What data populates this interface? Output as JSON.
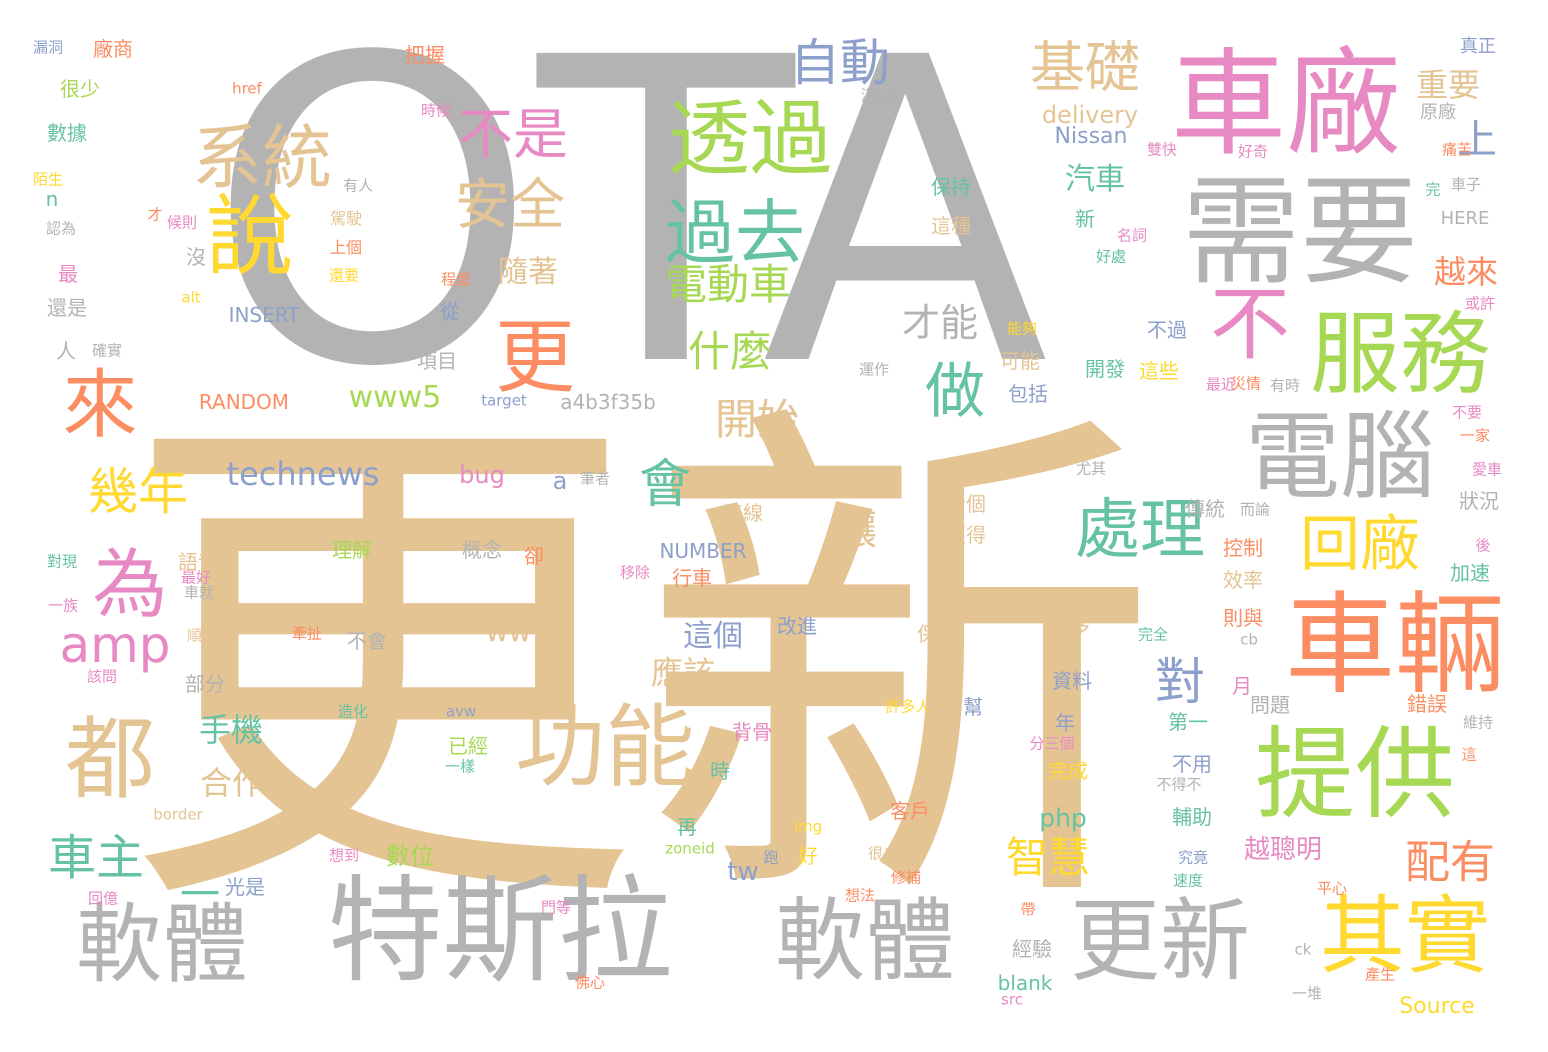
{
  "palette": {
    "gray": "#b3b3b3",
    "tan": "#e5c494",
    "orange": "#fc8d62",
    "pink": "#e78ac3",
    "green": "#a6d854",
    "teal": "#66c2a5",
    "blue": "#8da0cb",
    "yellow": "#ffd92f"
  },
  "words": [
    {
      "text": "OTA",
      "color": "gray"
    },
    {
      "text": "更新",
      "color": "tan"
    },
    {
      "text": "車廠",
      "color": "pink"
    },
    {
      "text": "需要",
      "color": "gray"
    },
    {
      "text": "特斯拉",
      "color": "gray"
    },
    {
      "text": "軟體",
      "color": "gray"
    },
    {
      "text": "軟體",
      "color": "gray"
    },
    {
      "text": "更新",
      "color": "gray"
    },
    {
      "text": "車輛",
      "color": "orange"
    },
    {
      "text": "提供",
      "color": "green"
    },
    {
      "text": "電腦",
      "color": "gray"
    },
    {
      "text": "服務",
      "color": "green"
    },
    {
      "text": "不",
      "color": "pink"
    },
    {
      "text": "其實",
      "color": "yellow"
    },
    {
      "text": "都",
      "color": "tan"
    },
    {
      "text": "功能",
      "color": "tan"
    },
    {
      "text": "透過",
      "color": "green"
    },
    {
      "text": "過去",
      "color": "teal"
    },
    {
      "text": "更",
      "color": "orange"
    },
    {
      "text": "說",
      "color": "yellow"
    },
    {
      "text": "系統",
      "color": "tan"
    },
    {
      "text": "來",
      "color": "orange"
    },
    {
      "text": "為",
      "color": "pink"
    },
    {
      "text": "處理",
      "color": "teal"
    },
    {
      "text": "回廠",
      "color": "yellow"
    },
    {
      "text": "基礎",
      "color": "tan"
    },
    {
      "text": "自動",
      "color": "blue"
    },
    {
      "text": "不是",
      "color": "pink"
    },
    {
      "text": "安全",
      "color": "tan"
    },
    {
      "text": "做",
      "color": "teal"
    },
    {
      "text": "會",
      "color": "teal"
    },
    {
      "text": "幾年",
      "color": "yellow"
    },
    {
      "text": "amp",
      "color": "pink"
    },
    {
      "text": "車主",
      "color": "teal"
    },
    {
      "text": "一",
      "color": "teal"
    },
    {
      "text": "配有",
      "color": "orange"
    },
    {
      "text": "智慧",
      "color": "yellow"
    },
    {
      "text": "電動車",
      "color": "green"
    },
    {
      "text": "什麼",
      "color": "green"
    },
    {
      "text": "開始",
      "color": "tan"
    },
    {
      "text": "才能",
      "color": "gray"
    },
    {
      "text": "technews",
      "color": "blue"
    },
    {
      "text": "www5",
      "color": "green"
    },
    {
      "text": "對",
      "color": "blue"
    },
    {
      "text": "讓",
      "color": "tan"
    },
    {
      "text": "上",
      "color": "blue"
    },
    {
      "text": "重要",
      "color": "tan"
    },
    {
      "text": "越來",
      "color": "orange"
    },
    {
      "text": "汽車",
      "color": "teal"
    },
    {
      "text": "隨著",
      "color": "tan"
    },
    {
      "text": "delivery",
      "color": "tan"
    },
    {
      "text": "Nissan",
      "color": "blue"
    },
    {
      "text": "手機",
      "color": "teal"
    },
    {
      "text": "合作",
      "color": "tan"
    },
    {
      "text": "應該",
      "color": "tan"
    },
    {
      "text": "這個",
      "color": "blue"
    },
    {
      "text": "www",
      "color": "tan"
    },
    {
      "text": "越聰明",
      "color": "pink"
    },
    {
      "text": "tw",
      "color": "blue"
    },
    {
      "text": "php",
      "color": "teal"
    },
    {
      "text": "a4b3f35b",
      "color": "gray"
    },
    {
      "text": "RANDOM",
      "color": "orange"
    },
    {
      "text": "INSERT",
      "color": "blue"
    },
    {
      "text": "NUMBER",
      "color": "blue"
    },
    {
      "text": "Source",
      "color": "yellow"
    },
    {
      "text": "bug",
      "color": "pink"
    },
    {
      "text": "a",
      "color": "blue"
    },
    {
      "text": "數位",
      "color": "green"
    },
    {
      "text": "語音",
      "color": "tan"
    },
    {
      "text": "控制",
      "color": "orange"
    },
    {
      "text": "效率",
      "color": "tan"
    },
    {
      "text": "傳統",
      "color": "gray"
    },
    {
      "text": "狀況",
      "color": "gray"
    },
    {
      "text": "加速",
      "color": "teal"
    },
    {
      "text": "錯誤",
      "color": "orange"
    },
    {
      "text": "問題",
      "color": "gray"
    },
    {
      "text": "資料",
      "color": "blue"
    },
    {
      "text": "許多",
      "color": "tan"
    },
    {
      "text": "改進",
      "color": "blue"
    },
    {
      "text": "保養",
      "color": "tan"
    },
    {
      "text": "客戶",
      "color": "orange"
    },
    {
      "text": "完成",
      "color": "yellow"
    },
    {
      "text": "已經",
      "color": "green"
    },
    {
      "text": "行車",
      "color": "orange"
    },
    {
      "text": "理解",
      "color": "green"
    },
    {
      "text": "概念",
      "color": "gray"
    },
    {
      "text": "部分",
      "color": "gray"
    },
    {
      "text": "背骨",
      "color": "pink"
    },
    {
      "text": "獲得",
      "color": "tan"
    },
    {
      "text": "連線",
      "color": "tan"
    },
    {
      "text": "看個",
      "color": "tan"
    },
    {
      "text": "包括",
      "color": "blue"
    },
    {
      "text": "可能",
      "color": "tan"
    },
    {
      "text": "項目",
      "color": "gray"
    },
    {
      "text": "開發",
      "color": "teal"
    },
    {
      "text": "這些",
      "color": "yellow"
    },
    {
      "text": "不過",
      "color": "blue"
    },
    {
      "text": "保持",
      "color": "teal"
    },
    {
      "text": "這種",
      "color": "tan"
    },
    {
      "text": "駕駛",
      "color": "tan"
    },
    {
      "text": "上個",
      "color": "orange"
    },
    {
      "text": "很少",
      "color": "green"
    },
    {
      "text": "數據",
      "color": "teal"
    },
    {
      "text": "廠商",
      "color": "orange"
    },
    {
      "text": "把握",
      "color": "orange"
    },
    {
      "text": "href",
      "color": "orange"
    },
    {
      "text": "時候",
      "color": "pink"
    },
    {
      "text": "漏洞",
      "color": "blue"
    },
    {
      "text": "真正",
      "color": "blue"
    },
    {
      "text": "原廠",
      "color": "gray"
    },
    {
      "text": "HERE",
      "color": "gray"
    },
    {
      "text": "第一",
      "color": "teal"
    },
    {
      "text": "不用",
      "color": "blue"
    },
    {
      "text": "輔助",
      "color": "teal"
    },
    {
      "text": "維持",
      "color": "gray"
    },
    {
      "text": "再",
      "color": "teal"
    },
    {
      "text": "好",
      "color": "yellow"
    },
    {
      "text": "時",
      "color": "teal"
    },
    {
      "text": "年",
      "color": "blue"
    },
    {
      "text": "月",
      "color": "pink"
    },
    {
      "text": "新",
      "color": "teal"
    },
    {
      "text": "從",
      "color": "blue"
    },
    {
      "text": "沒",
      "color": "gray"
    },
    {
      "text": "最",
      "color": "pink"
    },
    {
      "text": "還是",
      "color": "gray"
    },
    {
      "text": "人",
      "color": "gray"
    },
    {
      "text": "確實",
      "color": "gray"
    },
    {
      "text": "認為",
      "color": "gray"
    },
    {
      "text": "陌生",
      "color": "yellow"
    },
    {
      "text": "n",
      "color": "teal"
    },
    {
      "text": "才",
      "color": "orange"
    },
    {
      "text": "候則",
      "color": "pink"
    },
    {
      "text": "有人",
      "color": "gray"
    },
    {
      "text": "還要",
      "color": "yellow"
    },
    {
      "text": "程度",
      "color": "orange"
    },
    {
      "text": "alt",
      "color": "yellow"
    },
    {
      "text": "滿街",
      "color": "gray"
    },
    {
      "text": "能夠",
      "color": "yellow"
    },
    {
      "text": "運作",
      "color": "gray"
    },
    {
      "text": "最近",
      "color": "pink"
    },
    {
      "text": "災情",
      "color": "orange"
    },
    {
      "text": "有時",
      "color": "gray"
    },
    {
      "text": "不要",
      "color": "pink"
    },
    {
      "text": "一家",
      "color": "orange"
    },
    {
      "text": "愛車",
      "color": "pink"
    },
    {
      "text": "而論",
      "color": "gray"
    },
    {
      "text": "尤其",
      "color": "gray"
    },
    {
      "text": "後",
      "color": "pink"
    },
    {
      "text": "則與",
      "color": "orange"
    },
    {
      "text": "cb",
      "color": "gray"
    },
    {
      "text": "完全",
      "color": "teal"
    },
    {
      "text": "target",
      "color": "blue"
    },
    {
      "text": "筆者",
      "color": "gray"
    },
    {
      "text": "卻",
      "color": "orange"
    },
    {
      "text": "移除",
      "color": "pink"
    },
    {
      "text": "牽扯",
      "color": "orange"
    },
    {
      "text": "不會",
      "color": "gray"
    },
    {
      "text": "順暢",
      "color": "tan"
    },
    {
      "text": "車就",
      "color": "gray"
    },
    {
      "text": "最好",
      "color": "pink"
    },
    {
      "text": "對現",
      "color": "teal"
    },
    {
      "text": "一族",
      "color": "pink"
    },
    {
      "text": "該問",
      "color": "pink"
    },
    {
      "text": "造化",
      "color": "teal"
    },
    {
      "text": "avw",
      "color": "blue"
    },
    {
      "text": "許多人",
      "color": "yellow"
    },
    {
      "text": "幫",
      "color": "blue"
    },
    {
      "text": "分三個",
      "color": "pink"
    },
    {
      "text": "一樣",
      "color": "teal"
    },
    {
      "text": "img",
      "color": "yellow"
    },
    {
      "text": "zoneid",
      "color": "green"
    },
    {
      "text": "跑",
      "color": "blue"
    },
    {
      "text": "很多",
      "color": "tan"
    },
    {
      "text": "修補",
      "color": "orange"
    },
    {
      "text": "想法",
      "color": "orange"
    },
    {
      "text": "想到",
      "color": "pink"
    },
    {
      "text": "border",
      "color": "tan"
    },
    {
      "text": "光是",
      "color": "blue"
    },
    {
      "text": "回億",
      "color": "pink"
    },
    {
      "text": "門等",
      "color": "pink"
    },
    {
      "text": "佛心",
      "color": "orange"
    },
    {
      "text": "帶",
      "color": "orange"
    },
    {
      "text": "經驗",
      "color": "gray"
    },
    {
      "text": "blank",
      "color": "teal"
    },
    {
      "text": "src",
      "color": "pink"
    },
    {
      "text": "究竟",
      "color": "blue"
    },
    {
      "text": "速度",
      "color": "teal"
    },
    {
      "text": "平心",
      "color": "orange"
    },
    {
      "text": "不得不",
      "color": "gray"
    },
    {
      "text": "產生",
      "color": "orange"
    },
    {
      "text": "一堆",
      "color": "gray"
    },
    {
      "text": "ck",
      "color": "gray"
    },
    {
      "text": "這",
      "color": "orange"
    },
    {
      "text": "車子",
      "color": "gray"
    },
    {
      "text": "痛苦",
      "color": "orange"
    },
    {
      "text": "好奇",
      "color": "pink"
    },
    {
      "text": "雙快",
      "color": "pink"
    },
    {
      "text": "名詞",
      "color": "pink"
    },
    {
      "text": "好處",
      "color": "teal"
    },
    {
      "text": "完",
      "color": "teal"
    },
    {
      "text": "或許",
      "color": "pink"
    }
  ]
}
